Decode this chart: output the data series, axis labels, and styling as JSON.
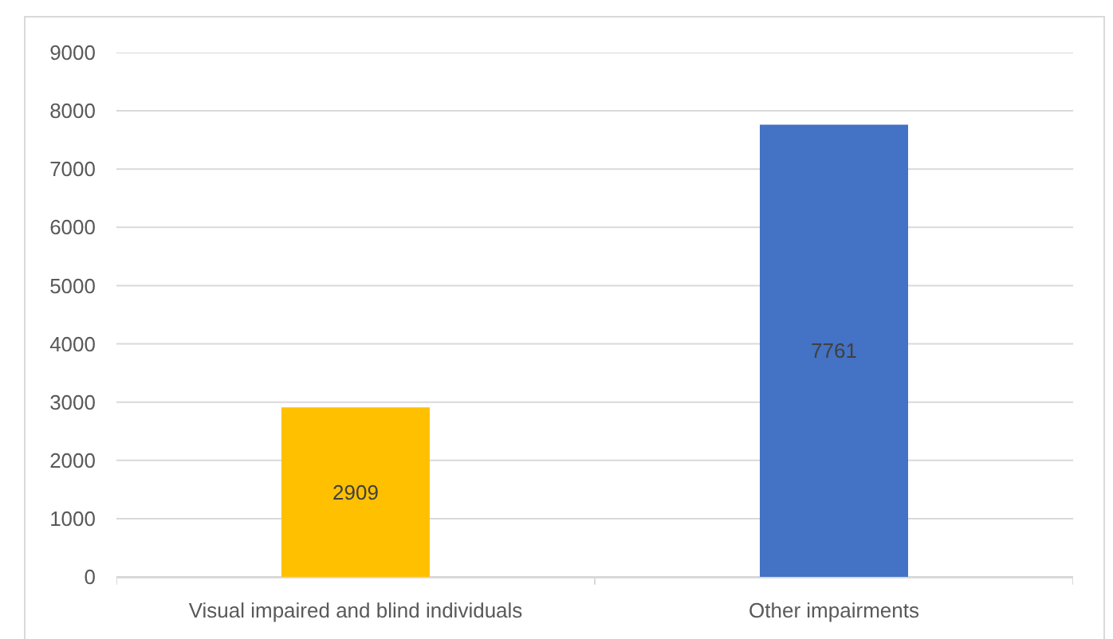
{
  "chart_data": {
    "type": "bar",
    "categories": [
      "Visual impaired and blind individuals",
      "Other impairments"
    ],
    "values": [
      2909,
      7761
    ],
    "colors": [
      "#ffc000",
      "#4472c4"
    ],
    "ylim": [
      0,
      9000
    ],
    "yticks": [
      0,
      1000,
      2000,
      3000,
      4000,
      5000,
      6000,
      7000,
      8000,
      9000
    ],
    "grid": "y",
    "data_labels": true
  }
}
